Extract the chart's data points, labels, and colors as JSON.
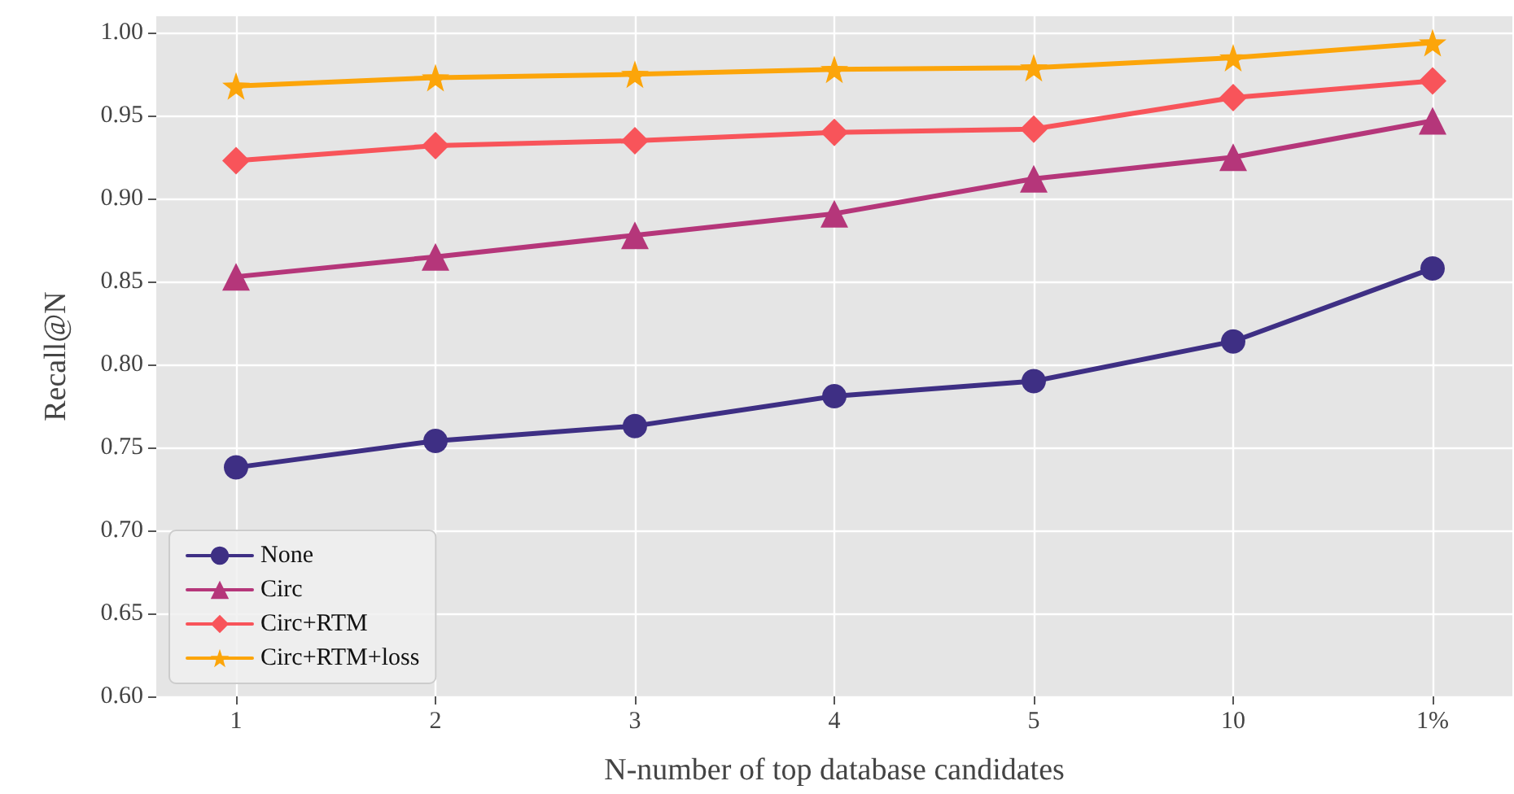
{
  "chart_data": {
    "type": "line",
    "xlabel": "N-number of top database candidates",
    "ylabel": "Recall@N",
    "categories": [
      "1",
      "2",
      "3",
      "4",
      "5",
      "10",
      "1%"
    ],
    "ylim": [
      0.6,
      1.01
    ],
    "yticks": [
      {
        "value": 0.6,
        "label": "0.60"
      },
      {
        "value": 0.65,
        "label": "0.65"
      },
      {
        "value": 0.7,
        "label": "0.70"
      },
      {
        "value": 0.75,
        "label": "0.75"
      },
      {
        "value": 0.8,
        "label": "0.80"
      },
      {
        "value": 0.85,
        "label": "0.85"
      },
      {
        "value": 0.9,
        "label": "0.90"
      },
      {
        "value": 0.95,
        "label": "0.95"
      },
      {
        "value": 1.0,
        "label": "1.00"
      }
    ],
    "grid": true,
    "legend": "bottom left",
    "line_style": "solid",
    "series": [
      {
        "name": "None",
        "color": "#3e2f84",
        "marker": "circle",
        "values": [
          0.738,
          0.754,
          0.763,
          0.781,
          0.79,
          0.814,
          0.858
        ]
      },
      {
        "name": "Circ",
        "color": "#b5367a",
        "marker": "triangle",
        "values": [
          0.853,
          0.865,
          0.878,
          0.891,
          0.912,
          0.925,
          0.947
        ]
      },
      {
        "name": "Circ+RTM",
        "color": "#f8545a",
        "marker": "diamond",
        "values": [
          0.923,
          0.932,
          0.935,
          0.94,
          0.942,
          0.961,
          0.971
        ]
      },
      {
        "name": "Circ+RTM+loss",
        "color": "#fca50a",
        "marker": "star",
        "values": [
          0.968,
          0.973,
          0.975,
          0.978,
          0.979,
          0.985,
          0.994
        ]
      }
    ]
  }
}
